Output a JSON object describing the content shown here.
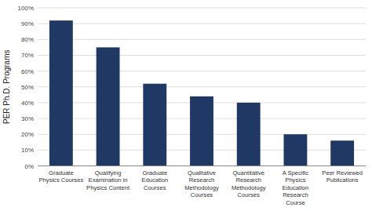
{
  "chart_data": {
    "type": "bar",
    "categories": [
      "Graduate\nPhysics Courses",
      "Qualifying\nExamination in\nPhysics Content",
      "Graduate\nEducation\nCourses",
      "Qualitative\nResearch\nMethodology\nCourses",
      "Quantitative\nResearch\nMethodology\nCourses",
      "A Specific\nPhysics\nEducation\nResearch\nCourse",
      "Peer Reviewed\nPublications"
    ],
    "values": [
      92,
      75,
      52,
      44,
      40,
      20,
      16
    ],
    "color": "#1F3864",
    "ylabel": "PER Ph.D. Programs",
    "ylim": [
      0,
      100
    ],
    "yticks": [
      {
        "value": 0,
        "label": "0%"
      },
      {
        "value": 10,
        "label": "10%"
      },
      {
        "value": 20,
        "label": "20%"
      },
      {
        "value": 30,
        "label": "30%"
      },
      {
        "value": 40,
        "label": "40%"
      },
      {
        "value": 50,
        "label": "50%"
      },
      {
        "value": 60,
        "label": "60%"
      },
      {
        "value": 70,
        "label": "70%"
      },
      {
        "value": 80,
        "label": "80%"
      },
      {
        "value": 90,
        "label": "90%"
      },
      {
        "value": 100,
        "label": "100%"
      }
    ],
    "grid": true
  }
}
